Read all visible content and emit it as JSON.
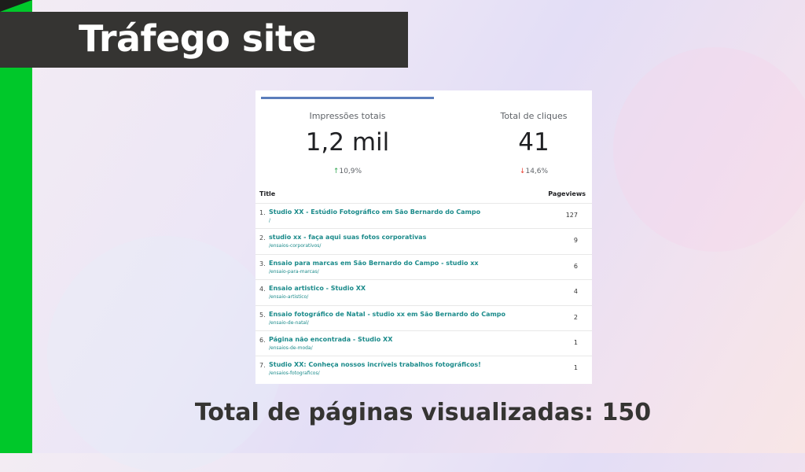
{
  "title": "Tráfego site",
  "kpis": [
    {
      "label": "Impressões totais",
      "value": "1,2 mil",
      "change": "10,9%",
      "direction": "up",
      "arrow": "↑"
    },
    {
      "label": "Total de cliques",
      "value": "41",
      "change": "14,6%",
      "direction": "down",
      "arrow": "↓"
    }
  ],
  "table": {
    "headers": {
      "title": "Title",
      "pageviews": "Pageviews"
    },
    "rows": [
      {
        "n": "1.",
        "title": "Studio XX - Estúdio Fotográfico em São Bernardo do Campo",
        "url": "/",
        "views": "127"
      },
      {
        "n": "2.",
        "title": "studio xx - faça aqui suas fotos corporativas",
        "url": "/ensaios-corporativos/",
        "views": "9"
      },
      {
        "n": "3.",
        "title": "Ensaio para marcas em São Bernardo do Campo - studio xx",
        "url": "/ensaio-para-marcas/",
        "views": "6"
      },
      {
        "n": "4.",
        "title": "Ensaio artistico - Studio XX",
        "url": "/ensaio-artistico/",
        "views": "4"
      },
      {
        "n": "5.",
        "title": "Ensaio fotográfico de Natal - studio xx em São Bernardo do Campo",
        "url": "/ensaio-de-natal/",
        "views": "2"
      },
      {
        "n": "6.",
        "title": "Página não encontrada - Studio XX",
        "url": "/ensaios-de-moda/",
        "views": "1"
      },
      {
        "n": "7.",
        "title": "Studio XX: Conheça nossos incríveis trabalhos fotográficos!",
        "url": "/ensaios-fotograficos/",
        "views": "1"
      }
    ]
  },
  "total": "Total de páginas visualizadas: 150",
  "colors": {
    "accent_green": "#00c82a",
    "banner": "#353432",
    "link": "#1a8a8a",
    "up": "#34a853",
    "down": "#ea4335"
  }
}
